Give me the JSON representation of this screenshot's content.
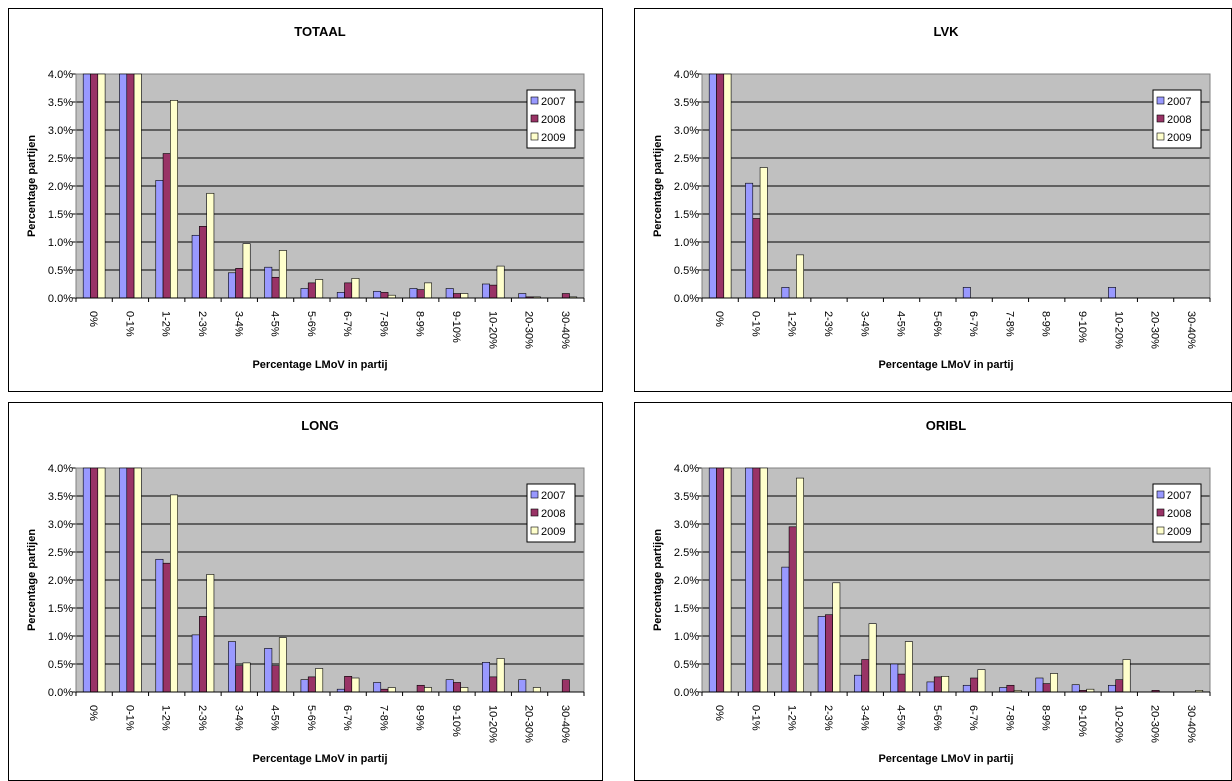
{
  "colors": {
    "plot_bg": "#c0c0c0",
    "2007": "#9999ff",
    "2008": "#993366",
    "2009": "#ffffcc"
  },
  "chart_data": [
    {
      "type": "bar",
      "title": "TOTAAL",
      "xlabel": "Percentage LMoV in partij",
      "ylabel": "Percentage partijen",
      "ylim": [
        0,
        4.0
      ],
      "ytick_labels": [
        "0.0%",
        "0.5%",
        "1.0%",
        "1.5%",
        "2.0%",
        "2.5%",
        "3.0%",
        "3.5%",
        "4.0%"
      ],
      "grid": true,
      "legend": "top-right",
      "categories": [
        "0%",
        "0-1%",
        "1-2%",
        "2-3%",
        "3-4%",
        "4-5%",
        "5-6%",
        "6-7%",
        "7-8%",
        "8-9%",
        "9-10%",
        "10-20%",
        "20-30%",
        "30-40%"
      ],
      "series": [
        {
          "name": "2007",
          "values": [
            4.0,
            4.0,
            2.1,
            1.12,
            0.45,
            0.55,
            0.17,
            0.1,
            0.12,
            0.17,
            0.17,
            0.25,
            0.08,
            0.0
          ]
        },
        {
          "name": "2008",
          "values": [
            4.0,
            4.0,
            2.58,
            1.28,
            0.53,
            0.37,
            0.27,
            0.27,
            0.1,
            0.15,
            0.08,
            0.23,
            0.02,
            0.08
          ]
        },
        {
          "name": "2009",
          "values": [
            4.0,
            4.0,
            3.53,
            1.87,
            0.97,
            0.85,
            0.33,
            0.35,
            0.05,
            0.27,
            0.08,
            0.57,
            0.02,
            0.02
          ]
        }
      ]
    },
    {
      "type": "bar",
      "title": "LVK",
      "xlabel": "Percentage LMoV in partij",
      "ylabel": "Percentage partijen",
      "ylim": [
        0,
        4.0
      ],
      "ytick_labels": [
        "0.0%",
        "0.5%",
        "1.0%",
        "1.5%",
        "2.0%",
        "2.5%",
        "3.0%",
        "3.5%",
        "4.0%"
      ],
      "grid": true,
      "legend": "top-right",
      "categories": [
        "0%",
        "0-1%",
        "1-2%",
        "2-3%",
        "3-4%",
        "4-5%",
        "5-6%",
        "6-7%",
        "7-8%",
        "8-9%",
        "9-10%",
        "10-20%",
        "20-30%",
        "30-40%"
      ],
      "series": [
        {
          "name": "2007",
          "values": [
            4.0,
            2.05,
            0.19,
            0,
            0,
            0,
            0,
            0.19,
            0,
            0,
            0,
            0.19,
            0,
            0
          ]
        },
        {
          "name": "2008",
          "values": [
            4.0,
            1.42,
            0,
            0,
            0,
            0,
            0,
            0,
            0,
            0,
            0,
            0,
            0,
            0
          ]
        },
        {
          "name": "2009",
          "values": [
            4.0,
            2.33,
            0.77,
            0,
            0,
            0,
            0,
            0,
            0,
            0,
            0,
            0,
            0,
            0
          ]
        }
      ]
    },
    {
      "type": "bar",
      "title": "LONG",
      "xlabel": "Percentage LMoV in partij",
      "ylabel": "Percentage partijen",
      "ylim": [
        0,
        4.0
      ],
      "ytick_labels": [
        "0.0%",
        "0.5%",
        "1.0%",
        "1.5%",
        "2.0%",
        "2.5%",
        "3.0%",
        "3.5%",
        "4.0%"
      ],
      "grid": true,
      "legend": "top-right",
      "categories": [
        "0%",
        "0-1%",
        "1-2%",
        "2-3%",
        "3-4%",
        "4-5%",
        "5-6%",
        "6-7%",
        "7-8%",
        "8-9%",
        "9-10%",
        "10-20%",
        "20-30%",
        "30-40%"
      ],
      "series": [
        {
          "name": "2007",
          "values": [
            4.0,
            4.0,
            2.37,
            1.02,
            0.9,
            0.78,
            0.22,
            0.05,
            0.17,
            0.0,
            0.22,
            0.53,
            0.22,
            0.0
          ]
        },
        {
          "name": "2008",
          "values": [
            4.0,
            4.0,
            2.3,
            1.35,
            0.47,
            0.47,
            0.27,
            0.28,
            0.05,
            0.12,
            0.17,
            0.27,
            0.0,
            0.22
          ]
        },
        {
          "name": "2009",
          "values": [
            4.0,
            4.0,
            3.52,
            2.1,
            0.52,
            0.97,
            0.42,
            0.25,
            0.08,
            0.08,
            0.08,
            0.6,
            0.08,
            0.0
          ]
        }
      ]
    },
    {
      "type": "bar",
      "title": "ORIBL",
      "xlabel": "Percentage LMoV in partij",
      "ylabel": "Percentage partijen",
      "ylim": [
        0,
        4.0
      ],
      "ytick_labels": [
        "0.0%",
        "0.5%",
        "1.0%",
        "1.5%",
        "2.0%",
        "2.5%",
        "3.0%",
        "3.5%",
        "4.0%"
      ],
      "grid": true,
      "legend": "top-right",
      "categories": [
        "0%",
        "0-1%",
        "1-2%",
        "2-3%",
        "3-4%",
        "4-5%",
        "5-6%",
        "6-7%",
        "7-8%",
        "8-9%",
        "9-10%",
        "10-20%",
        "20-30%",
        "30-40%"
      ],
      "series": [
        {
          "name": "2007",
          "values": [
            4.0,
            4.0,
            2.23,
            1.35,
            0.3,
            0.5,
            0.18,
            0.12,
            0.08,
            0.25,
            0.13,
            0.12,
            0.0,
            0.0
          ]
        },
        {
          "name": "2008",
          "values": [
            4.0,
            4.0,
            2.95,
            1.38,
            0.58,
            0.32,
            0.27,
            0.25,
            0.12,
            0.15,
            0.03,
            0.22,
            0.03,
            0.0
          ]
        },
        {
          "name": "2009",
          "values": [
            4.0,
            4.0,
            3.82,
            1.95,
            1.22,
            0.9,
            0.28,
            0.4,
            0.03,
            0.33,
            0.05,
            0.58,
            0.0,
            0.03
          ]
        }
      ]
    }
  ]
}
